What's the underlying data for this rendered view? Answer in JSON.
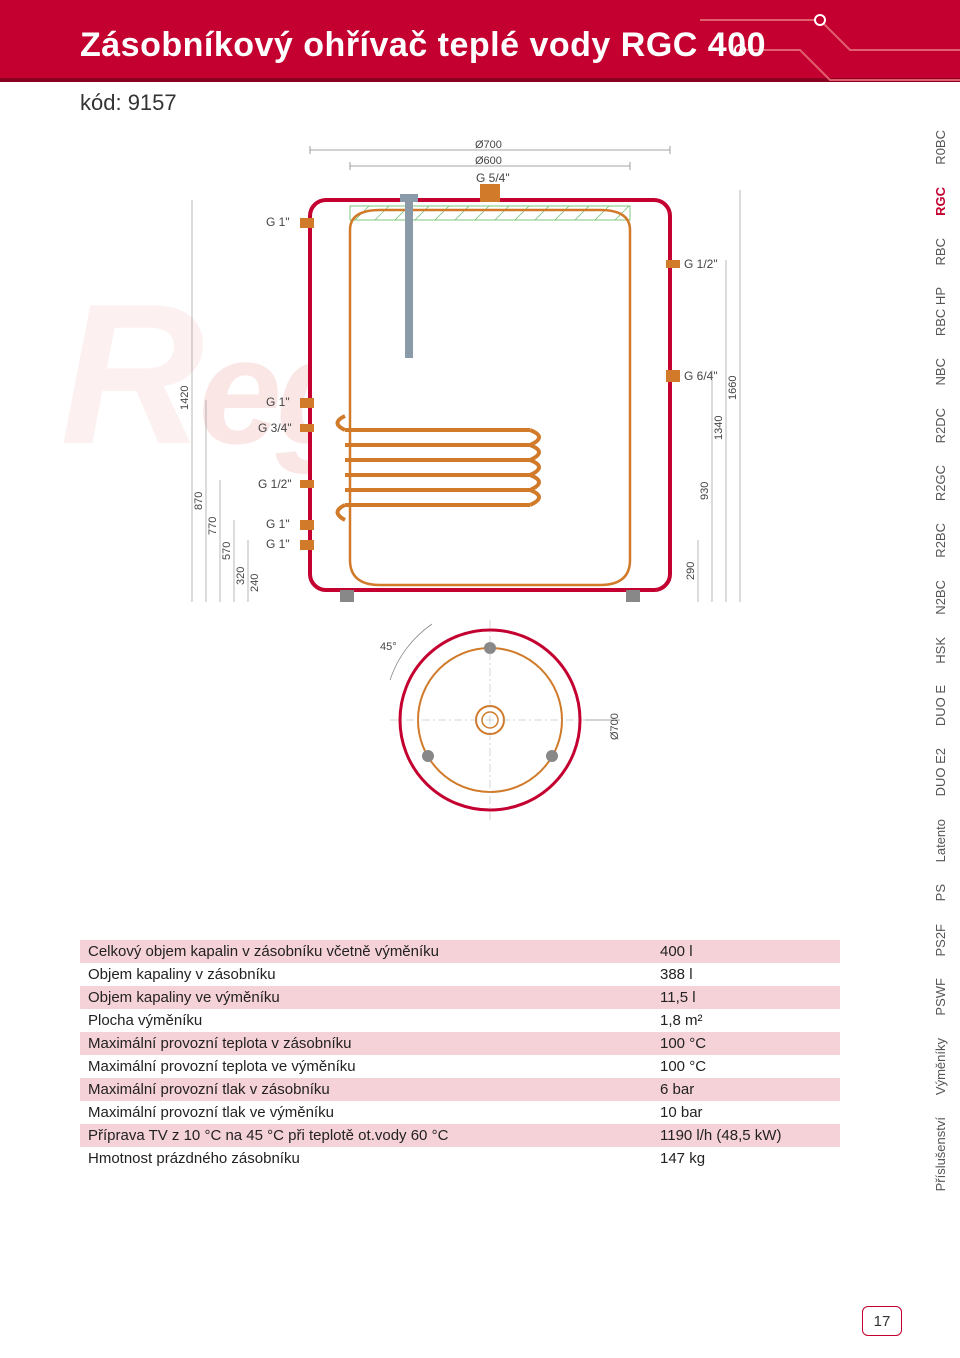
{
  "header": {
    "title": "Zásobníkový ohřívač teplé vody RGC 400",
    "subtitle": "kód: 9157",
    "brand_color": "#c3002f",
    "brand_dark": "#8b0020"
  },
  "watermark": {
    "text": "Regulus"
  },
  "side_tabs": [
    {
      "label": "R0BC",
      "active": false
    },
    {
      "label": "RGC",
      "active": true
    },
    {
      "label": "RBC",
      "active": false
    },
    {
      "label": "RBC HP",
      "active": false
    },
    {
      "label": "NBC",
      "active": false
    },
    {
      "label": "R2DC",
      "active": false
    },
    {
      "label": "R2GC",
      "active": false
    },
    {
      "label": "R2BC",
      "active": false
    },
    {
      "label": "N2BC",
      "active": false
    },
    {
      "label": "HSK",
      "active": false
    },
    {
      "label": "DUO E",
      "active": false
    },
    {
      "label": "DUO E2",
      "active": false
    },
    {
      "label": "Latento",
      "active": false
    },
    {
      "label": "PS",
      "active": false
    },
    {
      "label": "PS2F",
      "active": false
    },
    {
      "label": "PSWF",
      "active": false
    },
    {
      "label": "Výměníky",
      "active": false
    },
    {
      "label": "Příslušenství",
      "active": false
    }
  ],
  "diagram": {
    "outer_stroke": "#c3002f",
    "inner_stroke": "#d07a2a",
    "coil_stroke": "#d07a2a",
    "dim_color": "#666666",
    "hatch_color": "#5fb85f",
    "anode_color": "#8a9aa8",
    "front_view": {
      "width_outer": "Ø700",
      "width_inner": "Ø600",
      "top_port": "G 5/4\"",
      "left_ports": [
        "G 1\"",
        "G 1\"",
        "G 3/4\"",
        "G 1/2\"",
        "G 1\"",
        "G 1\""
      ],
      "right_ports": [
        "G 1/2\"",
        "G 6/4\""
      ],
      "dims_left": [
        "1420",
        "870",
        "770",
        "570",
        "320",
        "240"
      ],
      "dims_right": [
        "1660",
        "1340",
        "930",
        "290"
      ]
    },
    "bottom_view": {
      "angle": "45°",
      "radius": "Ø700"
    }
  },
  "specs": {
    "rows": [
      {
        "label": "Celkový objem kapalin v zásobníku včetně výměníku",
        "value": "400 l",
        "striped": true
      },
      {
        "label": "Objem kapaliny v zásobníku",
        "value": "388 l",
        "striped": false
      },
      {
        "label": "Objem kapaliny ve výměníku",
        "value": "11,5 l",
        "striped": true
      },
      {
        "label": "Plocha výměníku",
        "value": "1,8 m²",
        "striped": false
      },
      {
        "label": "Maximální provozní teplota v zásobníku",
        "value": "100 °C",
        "striped": true
      },
      {
        "label": "Maximální provozní teplota ve výměníku",
        "value": "100 °C",
        "striped": false
      },
      {
        "label": "Maximální provozní tlak v zásobníku",
        "value": "6 bar",
        "striped": true
      },
      {
        "label": "Maximální provozní tlak ve výměníku",
        "value": "10 bar",
        "striped": false
      },
      {
        "label": "Příprava TV z 10 °C na 45 °C při teplotě ot.vody 60 °C",
        "value": "1190 l/h (48,5 kW)",
        "striped": true
      },
      {
        "label": "Hmotnost prázdného zásobníku",
        "value": "147 kg",
        "striped": false
      }
    ],
    "stripe_color": "#f5d2d8"
  },
  "page_number": "17"
}
